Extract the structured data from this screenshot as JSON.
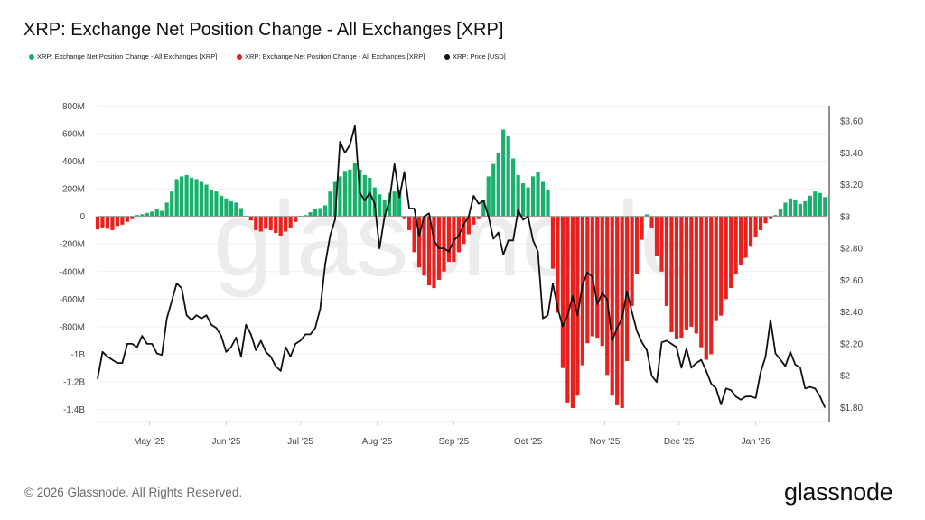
{
  "title": "XRP: Exchange Net Position Change - All Exchanges [XRP]",
  "legend": [
    {
      "label": "XRP: Exchange Net Position Change - All Exchanges [XRP]",
      "color": "#1aaf6c"
    },
    {
      "label": "XRP: Exchange Net Position Change - All Exchanges [XRP]",
      "color": "#e8201e"
    },
    {
      "label": "XRP: Price [USD]",
      "color": "#111111"
    }
  ],
  "watermark": "glassnode",
  "footer": "© 2026 Glassnode. All Rights Reserved.",
  "logo": "glassnode",
  "chart_data": {
    "type": "bar+line",
    "title": "XRP: Exchange Net Position Change - All Exchanges [XRP]",
    "grid": true,
    "legend_position": "top-left",
    "colors": {
      "positive": "#1aaf6c",
      "negative": "#e8201e",
      "price": "#111111"
    },
    "x_range": [
      "2025-04-10",
      "2026-01-30"
    ],
    "x_ticks": [
      {
        "date": "2025-05-01",
        "label": "May '25"
      },
      {
        "date": "2025-06-01",
        "label": "Jun '25"
      },
      {
        "date": "2025-07-01",
        "label": "Jul '25"
      },
      {
        "date": "2025-08-01",
        "label": "Aug '25"
      },
      {
        "date": "2025-09-01",
        "label": "Sep '25"
      },
      {
        "date": "2025-10-01",
        "label": "Oct '25"
      },
      {
        "date": "2025-11-01",
        "label": "Nov '25"
      },
      {
        "date": "2025-12-01",
        "label": "Dec '25"
      },
      {
        "date": "2026-01-01",
        "label": "Jan '26"
      }
    ],
    "y_left": {
      "unit": "XRP",
      "range": [
        -1400000000,
        800000000
      ],
      "ticks": [
        {
          "v": 800000000,
          "label": "800M"
        },
        {
          "v": 600000000,
          "label": "600M"
        },
        {
          "v": 400000000,
          "label": "400M"
        },
        {
          "v": 200000000,
          "label": "200M"
        },
        {
          "v": 0,
          "label": "0"
        },
        {
          "v": -200000000,
          "label": "-200M"
        },
        {
          "v": -400000000,
          "label": "-400M"
        },
        {
          "v": -600000000,
          "label": "-600M"
        },
        {
          "v": -800000000,
          "label": "-800M"
        },
        {
          "v": -1000000000,
          "label": "-1B"
        },
        {
          "v": -1200000000,
          "label": "-1.2B"
        },
        {
          "v": -1400000000,
          "label": "-1.4B"
        }
      ]
    },
    "y_right": {
      "unit": "USD",
      "range": [
        1.8,
        3.6
      ],
      "ticks": [
        {
          "v": 3.6,
          "label": "$3.60"
        },
        {
          "v": 3.4,
          "label": "$3.40"
        },
        {
          "v": 3.2,
          "label": "$3.20"
        },
        {
          "v": 3.0,
          "label": "$3"
        },
        {
          "v": 2.8,
          "label": "$2.80"
        },
        {
          "v": 2.6,
          "label": "$2.60"
        },
        {
          "v": 2.4,
          "label": "$2.40"
        },
        {
          "v": 2.2,
          "label": "$2.20"
        },
        {
          "v": 2.0,
          "label": "$2"
        },
        {
          "v": 1.8,
          "label": "$1.80"
        }
      ]
    },
    "series_columns": [
      "date",
      "net_position_change_millions_xrp",
      "price_usd"
    ],
    "points": [
      [
        "2025-04-10",
        -95,
        1.98
      ],
      [
        "2025-04-12",
        -80,
        2.15
      ],
      [
        "2025-04-14",
        -90,
        2.12
      ],
      [
        "2025-04-16",
        -100,
        2.1
      ],
      [
        "2025-04-18",
        -70,
        2.08
      ],
      [
        "2025-04-20",
        -60,
        2.08
      ],
      [
        "2025-04-22",
        -40,
        2.2
      ],
      [
        "2025-04-24",
        -20,
        2.2
      ],
      [
        "2025-04-26",
        10,
        2.18
      ],
      [
        "2025-04-28",
        15,
        2.25
      ],
      [
        "2025-04-30",
        25,
        2.2
      ],
      [
        "2025-05-02",
        35,
        2.2
      ],
      [
        "2025-05-04",
        50,
        2.14
      ],
      [
        "2025-05-06",
        40,
        2.13
      ],
      [
        "2025-05-08",
        100,
        2.36
      ],
      [
        "2025-05-10",
        180,
        2.47
      ],
      [
        "2025-05-12",
        270,
        2.58
      ],
      [
        "2025-05-14",
        290,
        2.55
      ],
      [
        "2025-05-16",
        300,
        2.38
      ],
      [
        "2025-05-18",
        280,
        2.35
      ],
      [
        "2025-05-20",
        270,
        2.38
      ],
      [
        "2025-05-22",
        250,
        2.36
      ],
      [
        "2025-05-24",
        230,
        2.38
      ],
      [
        "2025-05-26",
        190,
        2.32
      ],
      [
        "2025-05-28",
        180,
        2.3
      ],
      [
        "2025-05-30",
        150,
        2.25
      ],
      [
        "2025-06-01",
        130,
        2.15
      ],
      [
        "2025-06-03",
        110,
        2.18
      ],
      [
        "2025-06-05",
        100,
        2.24
      ],
      [
        "2025-06-07",
        60,
        2.12
      ],
      [
        "2025-06-09",
        5,
        2.32
      ],
      [
        "2025-06-11",
        -30,
        2.26
      ],
      [
        "2025-06-13",
        -100,
        2.16
      ],
      [
        "2025-06-15",
        -110,
        2.22
      ],
      [
        "2025-06-17",
        -90,
        2.15
      ],
      [
        "2025-06-19",
        -100,
        2.12
      ],
      [
        "2025-06-21",
        -120,
        2.06
      ],
      [
        "2025-06-23",
        -140,
        2.03
      ],
      [
        "2025-06-25",
        -110,
        2.18
      ],
      [
        "2025-06-27",
        -80,
        2.12
      ],
      [
        "2025-06-29",
        -40,
        2.2
      ],
      [
        "2025-07-01",
        5,
        2.22
      ],
      [
        "2025-07-03",
        10,
        2.26
      ],
      [
        "2025-07-05",
        30,
        2.26
      ],
      [
        "2025-07-07",
        50,
        2.3
      ],
      [
        "2025-07-09",
        60,
        2.42
      ],
      [
        "2025-07-11",
        80,
        2.7
      ],
      [
        "2025-07-13",
        180,
        2.88
      ],
      [
        "2025-07-15",
        250,
        2.98
      ],
      [
        "2025-07-17",
        290,
        3.47
      ],
      [
        "2025-07-19",
        330,
        3.4
      ],
      [
        "2025-07-21",
        340,
        3.45
      ],
      [
        "2025-07-23",
        390,
        3.57
      ],
      [
        "2025-07-25",
        340,
        3.15
      ],
      [
        "2025-07-27",
        300,
        3.1
      ],
      [
        "2025-07-29",
        280,
        3.15
      ],
      [
        "2025-07-31",
        210,
        3.08
      ],
      [
        "2025-08-02",
        160,
        2.8
      ],
      [
        "2025-08-04",
        120,
        3.0
      ],
      [
        "2025-08-06",
        170,
        3.1
      ],
      [
        "2025-08-08",
        180,
        3.33
      ],
      [
        "2025-08-10",
        190,
        3.12
      ],
      [
        "2025-08-12",
        -20,
        3.28
      ],
      [
        "2025-08-14",
        -100,
        3.05
      ],
      [
        "2025-08-16",
        -260,
        3.05
      ],
      [
        "2025-08-18",
        -370,
        2.88
      ],
      [
        "2025-08-20",
        -430,
        3.0
      ],
      [
        "2025-08-22",
        -500,
        3.02
      ],
      [
        "2025-08-24",
        -520,
        2.85
      ],
      [
        "2025-08-26",
        -460,
        2.8
      ],
      [
        "2025-08-28",
        -400,
        2.8
      ],
      [
        "2025-08-30",
        -330,
        2.78
      ],
      [
        "2025-09-01",
        -330,
        2.85
      ],
      [
        "2025-09-03",
        -260,
        2.88
      ],
      [
        "2025-09-05",
        -200,
        2.95
      ],
      [
        "2025-09-07",
        -130,
        3.0
      ],
      [
        "2025-09-09",
        -60,
        3.13
      ],
      [
        "2025-09-11",
        -20,
        3.08
      ],
      [
        "2025-09-13",
        120,
        3.1
      ],
      [
        "2025-09-15",
        290,
        3.0
      ],
      [
        "2025-09-17",
        380,
        2.86
      ],
      [
        "2025-09-19",
        460,
        2.9
      ],
      [
        "2025-09-21",
        630,
        2.76
      ],
      [
        "2025-09-23",
        580,
        2.85
      ],
      [
        "2025-09-25",
        420,
        2.85
      ],
      [
        "2025-09-27",
        300,
        3.04
      ],
      [
        "2025-09-29",
        240,
        2.98
      ],
      [
        "2025-10-01",
        210,
        3.0
      ],
      [
        "2025-10-03",
        290,
        2.85
      ],
      [
        "2025-10-05",
        320,
        2.78
      ],
      [
        "2025-10-07",
        250,
        2.36
      ],
      [
        "2025-10-09",
        190,
        2.38
      ],
      [
        "2025-10-11",
        -380,
        2.58
      ],
      [
        "2025-10-13",
        -700,
        2.42
      ],
      [
        "2025-10-15",
        -1100,
        2.31
      ],
      [
        "2025-10-17",
        -1350,
        2.38
      ],
      [
        "2025-10-19",
        -1390,
        2.5
      ],
      [
        "2025-10-21",
        -1300,
        2.38
      ],
      [
        "2025-10-23",
        -1080,
        2.57
      ],
      [
        "2025-10-25",
        -920,
        2.65
      ],
      [
        "2025-10-27",
        -870,
        2.62
      ],
      [
        "2025-10-29",
        -880,
        2.45
      ],
      [
        "2025-10-31",
        -940,
        2.52
      ],
      [
        "2025-11-02",
        -1150,
        2.48
      ],
      [
        "2025-11-04",
        -1300,
        2.22
      ],
      [
        "2025-11-06",
        -1370,
        2.3
      ],
      [
        "2025-11-08",
        -1390,
        2.36
      ],
      [
        "2025-11-10",
        -1050,
        2.53
      ],
      [
        "2025-11-12",
        -650,
        2.4
      ],
      [
        "2025-11-14",
        -420,
        2.28
      ],
      [
        "2025-11-16",
        -170,
        2.21
      ],
      [
        "2025-11-18",
        15,
        2.16
      ],
      [
        "2025-11-20",
        -80,
        2.0
      ],
      [
        "2025-11-22",
        -290,
        1.96
      ],
      [
        "2025-11-24",
        -400,
        2.21
      ],
      [
        "2025-11-26",
        -650,
        2.22
      ],
      [
        "2025-11-28",
        -840,
        2.2
      ],
      [
        "2025-11-30",
        -890,
        2.18
      ],
      [
        "2025-12-02",
        -880,
        2.05
      ],
      [
        "2025-12-04",
        -820,
        2.17
      ],
      [
        "2025-12-06",
        -800,
        2.05
      ],
      [
        "2025-12-08",
        -850,
        2.08
      ],
      [
        "2025-12-10",
        -950,
        2.1
      ],
      [
        "2025-12-12",
        -1040,
        2.03
      ],
      [
        "2025-12-14",
        -1000,
        1.95
      ],
      [
        "2025-12-16",
        -760,
        1.92
      ],
      [
        "2025-12-18",
        -720,
        1.82
      ],
      [
        "2025-12-20",
        -600,
        1.92
      ],
      [
        "2025-12-22",
        -520,
        1.91
      ],
      [
        "2025-12-24",
        -420,
        1.87
      ],
      [
        "2025-12-26",
        -350,
        1.85
      ],
      [
        "2025-12-28",
        -300,
        1.87
      ],
      [
        "2025-12-30",
        -220,
        1.87
      ],
      [
        "2026-01-01",
        -150,
        1.86
      ],
      [
        "2026-01-03",
        -100,
        2.02
      ],
      [
        "2026-01-05",
        -50,
        2.12
      ],
      [
        "2026-01-07",
        -20,
        2.35
      ],
      [
        "2026-01-09",
        10,
        2.14
      ],
      [
        "2026-01-11",
        50,
        2.1
      ],
      [
        "2026-01-13",
        100,
        2.06
      ],
      [
        "2026-01-15",
        130,
        2.15
      ],
      [
        "2026-01-17",
        120,
        2.07
      ],
      [
        "2026-01-19",
        90,
        2.05
      ],
      [
        "2026-01-21",
        110,
        1.92
      ],
      [
        "2026-01-23",
        150,
        1.93
      ],
      [
        "2026-01-25",
        180,
        1.92
      ],
      [
        "2026-01-27",
        170,
        1.87
      ],
      [
        "2026-01-29",
        140,
        1.8
      ]
    ]
  }
}
